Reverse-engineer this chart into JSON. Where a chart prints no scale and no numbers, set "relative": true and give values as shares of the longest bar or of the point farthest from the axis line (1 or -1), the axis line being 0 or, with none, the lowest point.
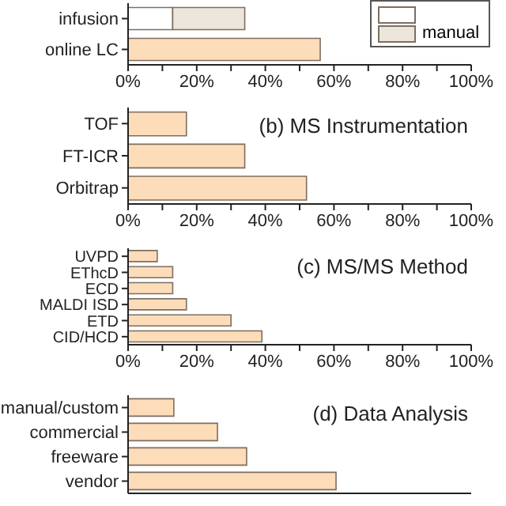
{
  "chart_data": [
    {
      "type": "bar",
      "orientation": "horizontal",
      "stacked": true,
      "categories": [
        "infusion",
        "online LC"
      ],
      "series": [
        {
          "color": "#ffffff",
          "values": [
            13,
            null
          ]
        },
        {
          "name": "manual",
          "color": "#ece5dc",
          "values": [
            21,
            null
          ]
        },
        {
          "color": "#fddcb9",
          "values": [
            null,
            56
          ]
        }
      ],
      "xlim": [
        0,
        100
      ],
      "xticks": [
        {
          "value": 0,
          "label": "0%"
        },
        {
          "value": 10,
          "label": null
        },
        {
          "value": 20,
          "label": "20%"
        },
        {
          "value": 30,
          "label": null
        },
        {
          "value": 40,
          "label": "40%"
        },
        {
          "value": 50,
          "label": null
        },
        {
          "value": 60,
          "label": "60%"
        },
        {
          "value": 70,
          "label": null
        },
        {
          "value": 80,
          "label": "80%"
        },
        {
          "value": 90,
          "label": null
        },
        {
          "value": 100,
          "label": "100%"
        }
      ],
      "legend": "top right",
      "grid": false
    },
    {
      "type": "bar",
      "orientation": "horizontal",
      "title": "(b) MS Instrumentation",
      "categories": [
        "TOF",
        "FT-ICR",
        "Orbitrap"
      ],
      "series": [
        {
          "color": "#fddcb9",
          "values": [
            17,
            34,
            52
          ]
        }
      ],
      "xlim": [
        0,
        100
      ],
      "xticks": [
        {
          "value": 0,
          "label": "0%"
        },
        {
          "value": 10,
          "label": null
        },
        {
          "value": 20,
          "label": "20%"
        },
        {
          "value": 30,
          "label": null
        },
        {
          "value": 40,
          "label": "40%"
        },
        {
          "value": 50,
          "label": null
        },
        {
          "value": 60,
          "label": "60%"
        },
        {
          "value": 70,
          "label": null
        },
        {
          "value": 80,
          "label": "80%"
        },
        {
          "value": 90,
          "label": null
        },
        {
          "value": 100,
          "label": "100%"
        }
      ],
      "grid": false
    },
    {
      "type": "bar",
      "orientation": "horizontal",
      "title": "(c) MS/MS Method",
      "categories": [
        "UVPD",
        "EThcD",
        "ECD",
        "MALDI ISD",
        "ETD",
        "CID/HCD"
      ],
      "series": [
        {
          "color": "#fddcb9",
          "values": [
            8.5,
            13,
            13,
            17,
            30,
            39
          ]
        }
      ],
      "xlim": [
        0,
        100
      ],
      "xticks": [
        {
          "value": 0,
          "label": "0%"
        },
        {
          "value": 10,
          "label": null
        },
        {
          "value": 20,
          "label": "20%"
        },
        {
          "value": 30,
          "label": null
        },
        {
          "value": 40,
          "label": "40%"
        },
        {
          "value": 50,
          "label": null
        },
        {
          "value": 60,
          "label": "60%"
        },
        {
          "value": 70,
          "label": null
        },
        {
          "value": 80,
          "label": "80%"
        },
        {
          "value": 90,
          "label": null
        },
        {
          "value": 100,
          "label": "100%"
        }
      ],
      "grid": false
    },
    {
      "type": "bar",
      "orientation": "horizontal",
      "title": "(d) Data Analysis",
      "categories": [
        "manual/custom",
        "commercial",
        "freeware",
        "vendor"
      ],
      "series": [
        {
          "color": "#fddcb9",
          "values": [
            0.22,
            0.43,
            0.57,
            1
          ]
        }
      ],
      "relative": true,
      "grid": false
    }
  ]
}
